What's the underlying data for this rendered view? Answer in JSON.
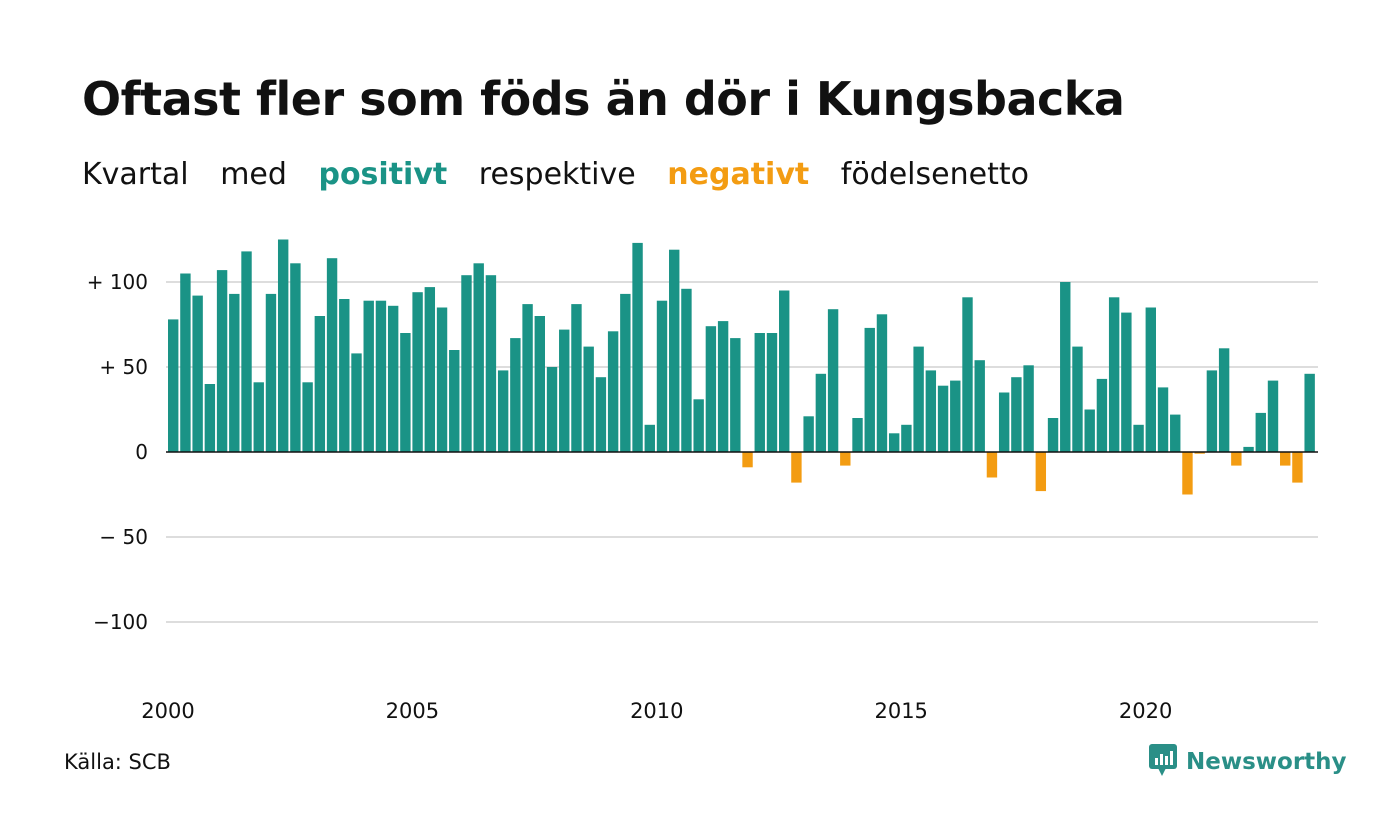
{
  "title": "Oftast fler som föds än dör i Kungsbacka",
  "subtitle": {
    "w1": "Kvartal",
    "w2": "med",
    "positive": "positivt",
    "w3": "respektive",
    "negative": "negativt",
    "w4": "födelsenetto"
  },
  "colors": {
    "positive": "#1a9386",
    "negative": "#f39c12",
    "grid": "#dddddd",
    "brand": "#2a8f87"
  },
  "source": "Källa: SCB",
  "brand": {
    "name": "Newsworthy",
    "icon": "newsworthy-logo-icon"
  },
  "chart_data": {
    "type": "bar",
    "x_start": 2000,
    "x_step": "quarter",
    "xticks": [
      {
        "label": "2000",
        "index": 0
      },
      {
        "label": "2005",
        "index": 20
      },
      {
        "label": "2010",
        "index": 40
      },
      {
        "label": "2015",
        "index": 60
      },
      {
        "label": "2020",
        "index": 80
      }
    ],
    "yticks": [
      {
        "label": "+ 100",
        "value": 100
      },
      {
        "label": "+  50",
        "value": 50
      },
      {
        "label": "0",
        "value": 0
      },
      {
        "label": "− 50",
        "value": -50
      },
      {
        "label": "−100",
        "value": -100
      }
    ],
    "ylim": [
      -120,
      135
    ],
    "grid": true,
    "values": [
      78,
      105,
      92,
      40,
      107,
      93,
      118,
      41,
      93,
      125,
      111,
      41,
      80,
      114,
      90,
      58,
      89,
      89,
      86,
      70,
      94,
      97,
      85,
      60,
      104,
      111,
      104,
      48,
      67,
      87,
      80,
      50,
      72,
      87,
      62,
      44,
      71,
      93,
      123,
      16,
      89,
      119,
      96,
      31,
      74,
      77,
      67,
      -9,
      70,
      70,
      95,
      -18,
      21,
      46,
      84,
      -8,
      20,
      73,
      81,
      11,
      16,
      62,
      48,
      39,
      42,
      91,
      54,
      -15,
      35,
      44,
      51,
      -23,
      20,
      100,
      62,
      25,
      43,
      91,
      82,
      16,
      85,
      38,
      22,
      -25,
      -1,
      48,
      61,
      -8,
      3,
      23,
      42,
      -8,
      -18,
      46
    ]
  }
}
